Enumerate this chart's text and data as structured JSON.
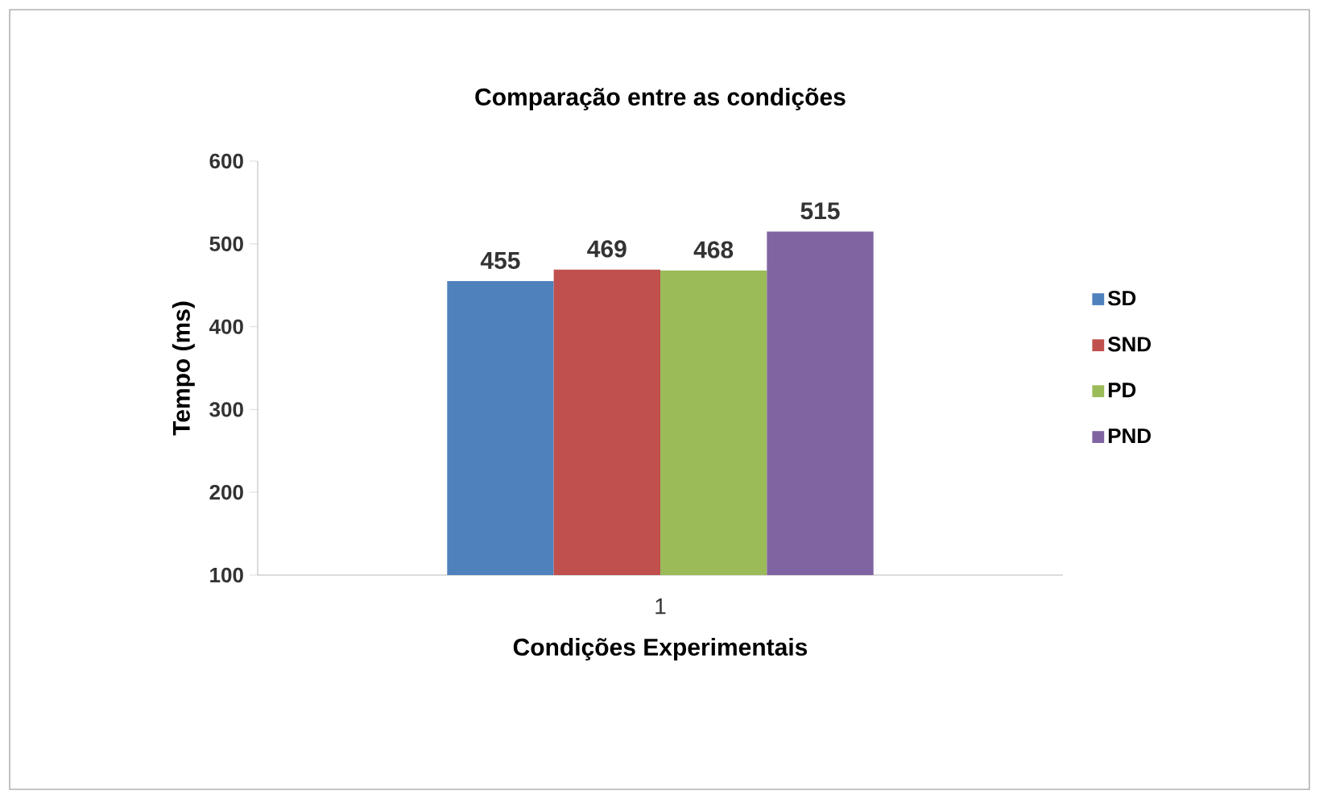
{
  "chart_data": {
    "type": "bar",
    "title": "Comparação entre as condições",
    "xlabel": "Condições Experimentais",
    "ylabel": "Tempo (ms)",
    "categories": [
      "1"
    ],
    "series": [
      {
        "name": "SD",
        "color": "#4f81bd",
        "values": [
          455
        ]
      },
      {
        "name": "SND",
        "color": "#c0504d",
        "values": [
          469
        ]
      },
      {
        "name": "PD",
        "color": "#9bbb59",
        "values": [
          468
        ]
      },
      {
        "name": "PND",
        "color": "#8064a2",
        "values": [
          515
        ]
      }
    ],
    "ylim": [
      100,
      600
    ],
    "yticks": [
      100,
      200,
      300,
      400,
      500,
      600
    ],
    "data_labels": true,
    "legend": "right",
    "grid": false
  }
}
